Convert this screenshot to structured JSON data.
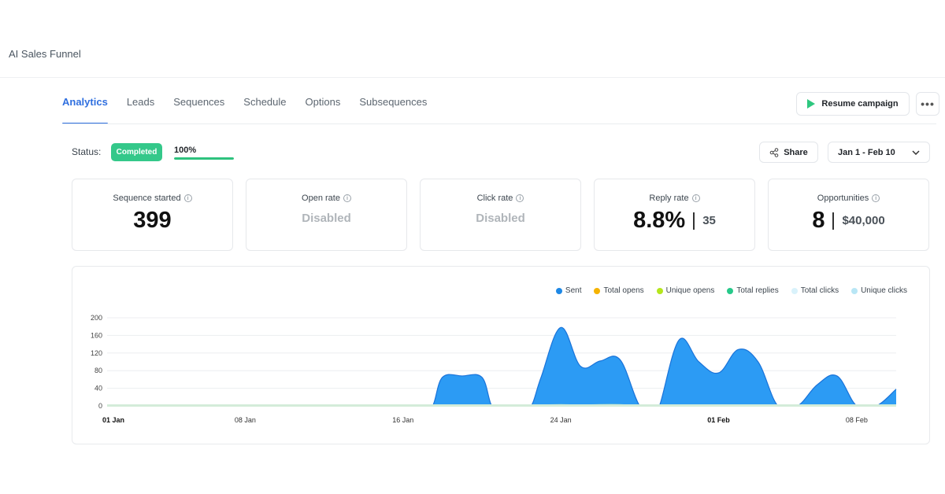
{
  "app": {
    "title": "AI Sales Funnel"
  },
  "tabs": [
    {
      "label": "Analytics",
      "active": true
    },
    {
      "label": "Leads"
    },
    {
      "label": "Sequences"
    },
    {
      "label": "Schedule"
    },
    {
      "label": "Options"
    },
    {
      "label": "Subsequences"
    }
  ],
  "actions": {
    "resume_label": "Resume campaign",
    "more_label": "•••",
    "share_label": "Share",
    "date_range": "Jan 1 - Feb 10"
  },
  "status": {
    "label": "Status:",
    "badge": "Completed",
    "progress_text": "100%",
    "progress": 1.0
  },
  "cards": [
    {
      "title": "Sequence started",
      "value": "399"
    },
    {
      "title": "Open rate",
      "value": "Disabled"
    },
    {
      "title": "Click rate",
      "value": "Disabled"
    },
    {
      "title": "Reply rate",
      "value": "8.8%",
      "sub": "35"
    },
    {
      "title": "Opportunities",
      "value": "8",
      "sub": "$40,000"
    }
  ],
  "colors": {
    "accent": "#2f6fdf",
    "completed": "#34c88a",
    "sent": "#2196f3"
  },
  "chart_data": {
    "type": "area",
    "legend": [
      {
        "name": "Sent",
        "color": "#1e88e5"
      },
      {
        "name": "Total opens",
        "color": "#f5b301"
      },
      {
        "name": "Unique opens",
        "color": "#b5e61d"
      },
      {
        "name": "Total replies",
        "color": "#27c98a"
      },
      {
        "name": "Total clicks",
        "color": "#d9f2fb"
      },
      {
        "name": "Unique clicks",
        "color": "#b8e6f5"
      }
    ],
    "ylim": [
      0,
      200
    ],
    "y_ticks": [
      0,
      40,
      80,
      120,
      160,
      200
    ],
    "x_ticks": [
      {
        "day": 1,
        "label": "01 Jan",
        "bold": true
      },
      {
        "day": 8,
        "label": "08 Jan"
      },
      {
        "day": 16,
        "label": "16 Jan"
      },
      {
        "day": 24,
        "label": "24 Jan"
      },
      {
        "day": 32,
        "label": "01 Feb",
        "bold": true
      },
      {
        "day": 39,
        "label": "08 Feb"
      }
    ],
    "series": [
      {
        "name": "Sent",
        "x": [
          1,
          2,
          3,
          4,
          5,
          6,
          7,
          8,
          9,
          10,
          11,
          12,
          13,
          14,
          15,
          16,
          17,
          17.5,
          18,
          19,
          20,
          20.5,
          21,
          22,
          22.5,
          23,
          24,
          25,
          26,
          27,
          28,
          28.7,
          29,
          30,
          31,
          32,
          33,
          34,
          35,
          36,
          37,
          38,
          39,
          40,
          41
        ],
        "y": [
          0,
          0,
          0,
          0,
          0,
          0,
          0,
          0,
          0,
          0,
          0,
          0,
          0,
          0,
          0,
          0,
          0,
          0,
          65,
          68,
          65,
          0,
          0,
          0,
          0,
          65,
          178,
          90,
          102,
          105,
          0,
          0,
          0,
          150,
          100,
          75,
          128,
          100,
          0,
          0,
          48,
          68,
          0,
          0,
          38
        ]
      },
      {
        "name": "Total replies",
        "x": [
          1,
          2,
          3,
          4,
          5,
          6,
          7,
          8,
          9,
          10,
          11,
          12,
          13,
          14,
          15,
          16,
          17,
          18,
          19,
          20,
          21,
          22,
          23,
          24,
          25,
          26,
          27,
          28,
          29,
          30,
          31,
          32,
          33,
          34,
          35,
          36,
          37,
          38,
          39,
          40,
          41
        ],
        "y": [
          1,
          1,
          1,
          1,
          1,
          1,
          1,
          1,
          1,
          1,
          1,
          1,
          1,
          1,
          1,
          1,
          1,
          2,
          2,
          2,
          1,
          1,
          2,
          3,
          2,
          3,
          3,
          1,
          1,
          2,
          2,
          2,
          2,
          1,
          1,
          1,
          2,
          1,
          1,
          1,
          1
        ]
      }
    ]
  }
}
